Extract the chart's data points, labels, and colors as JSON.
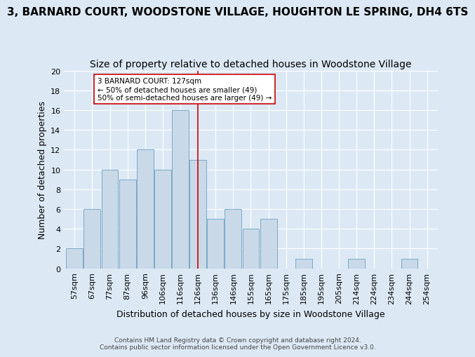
{
  "title": "3, BARNARD COURT, WOODSTONE VILLAGE, HOUGHTON LE SPRING, DH4 6TS",
  "subtitle": "Size of property relative to detached houses in Woodstone Village",
  "xlabel": "Distribution of detached houses by size in Woodstone Village",
  "ylabel": "Number of detached properties",
  "footer1": "Contains HM Land Registry data © Crown copyright and database right 2024.",
  "footer2": "Contains public sector information licensed under the Open Government Licence v3.0.",
  "bar_labels": [
    "57sqm",
    "67sqm",
    "77sqm",
    "87sqm",
    "96sqm",
    "106sqm",
    "116sqm",
    "126sqm",
    "136sqm",
    "146sqm",
    "155sqm",
    "165sqm",
    "175sqm",
    "185sqm",
    "195sqm",
    "205sqm",
    "214sqm",
    "224sqm",
    "234sqm",
    "244sqm",
    "254sqm"
  ],
  "bar_values": [
    2,
    6,
    10,
    9,
    12,
    10,
    16,
    11,
    5,
    6,
    4,
    5,
    0,
    1,
    0,
    0,
    1,
    0,
    0,
    1,
    0
  ],
  "ylim": [
    0,
    20
  ],
  "yticks": [
    0,
    2,
    4,
    6,
    8,
    10,
    12,
    14,
    16,
    18,
    20
  ],
  "bar_color": "#c9d9e8",
  "bar_edge_color": "#7aaac8",
  "vline_index": 7,
  "vline_color": "#cc0000",
  "annotation_line1": "3 BARNARD COURT: 127sqm",
  "annotation_line2": "← 50% of detached houses are smaller (49)",
  "annotation_line3": "50% of semi-detached houses are larger (49) →",
  "annotation_box_color": "#ffffff",
  "annotation_box_edge": "#cc0000",
  "bg_color": "#dce9f5",
  "plot_bg_color": "#dce9f5",
  "title_fontsize": 11,
  "subtitle_fontsize": 10,
  "tick_fontsize": 8,
  "ylabel_fontsize": 9,
  "xlabel_fontsize": 9
}
